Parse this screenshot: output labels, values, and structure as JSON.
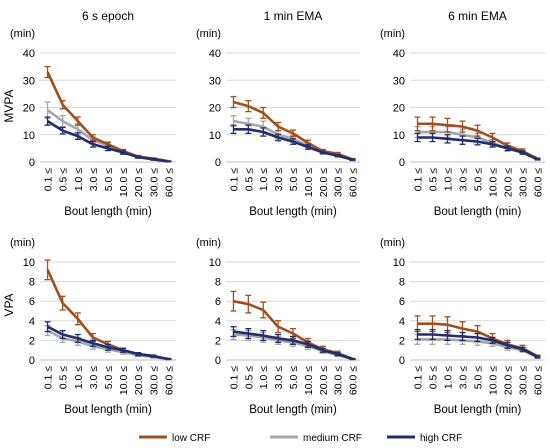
{
  "colors": {
    "low": "#a0501e",
    "medium": "#a6a6a6",
    "high": "#1f2f6e",
    "grid": "#d9d9d9",
    "axis": "#bfbfbf"
  },
  "legend": [
    {
      "key": "low",
      "label": "low CRF"
    },
    {
      "key": "medium",
      "label": "medium CRF"
    },
    {
      "key": "high",
      "label": "high CRF"
    }
  ],
  "row_labels": [
    "MVPA",
    "VPA"
  ],
  "chart_data": [
    {
      "type": "line",
      "title": "6 s epoch",
      "ylabel": "MVPA",
      "unit": "(min)",
      "xlabel": "Bout length (min)",
      "categories": [
        "0.1 ≤",
        "0.5 ≤",
        "1.0 ≤",
        "3.0 ≤",
        "5.0 ≤",
        "10.0 ≤",
        "20.0 ≤",
        "30.0 ≤",
        "60.0 ≤"
      ],
      "ylim": [
        0,
        40
      ],
      "yticks": [
        0,
        10,
        20,
        30,
        40
      ],
      "series": [
        {
          "name": "low CRF",
          "key": "low",
          "values": [
            33,
            21,
            15,
            9,
            6.5,
            4,
            2,
            1.2,
            0.3
          ],
          "err": [
            2,
            1.5,
            1.5,
            1,
            0.8,
            0.6,
            0.4,
            0.3,
            0.1
          ]
        },
        {
          "name": "medium CRF",
          "key": "medium",
          "values": [
            19,
            15,
            12,
            8,
            6,
            3.5,
            1.8,
            1,
            0.3
          ],
          "err": [
            3,
            2,
            2,
            1.2,
            1,
            0.7,
            0.4,
            0.3,
            0.1
          ]
        },
        {
          "name": "high CRF",
          "key": "high",
          "values": [
            15,
            11.5,
            9.5,
            6.5,
            5,
            3.5,
            1.8,
            1,
            0.2
          ],
          "err": [
            1.5,
            1.2,
            1.2,
            1,
            0.8,
            0.6,
            0.4,
            0.3,
            0.1
          ]
        }
      ]
    },
    {
      "type": "line",
      "title": "1 min EMA",
      "ylabel": "",
      "unit": "(min)",
      "xlabel": "Bout length (min)",
      "categories": [
        "0.1 ≤",
        "0.5 ≤",
        "1.0 ≤",
        "3.0 ≤",
        "5.0 ≤",
        "10.0 ≤",
        "20.0 ≤",
        "30.0 ≤",
        "60.0 ≤"
      ],
      "ylim": [
        0,
        40
      ],
      "yticks": [
        0,
        10,
        20,
        30,
        40
      ],
      "series": [
        {
          "name": "low CRF",
          "key": "low",
          "values": [
            22,
            20.5,
            18,
            13,
            10.5,
            7,
            4,
            3,
            1
          ],
          "err": [
            2,
            2,
            2,
            1.5,
            1.2,
            1,
            0.6,
            0.5,
            0.3
          ]
        },
        {
          "name": "medium CRF",
          "key": "medium",
          "values": [
            15,
            14,
            13,
            10,
            8.5,
            6,
            3.5,
            2.5,
            0.8
          ],
          "err": [
            2,
            2,
            2,
            1.5,
            1.2,
            1,
            0.6,
            0.5,
            0.3
          ]
        },
        {
          "name": "high CRF",
          "key": "high",
          "values": [
            12,
            12,
            11,
            9,
            7.5,
            5.5,
            3.5,
            2.3,
            0.8
          ],
          "err": [
            1.5,
            1.5,
            1.5,
            1.2,
            1,
            0.8,
            0.5,
            0.4,
            0.2
          ]
        }
      ]
    },
    {
      "type": "line",
      "title": "6 min EMA",
      "ylabel": "",
      "unit": "(min)",
      "xlabel": "Bout length (min)",
      "categories": [
        "0.1 ≤",
        "0.5 ≤",
        "1.0 ≤",
        "3.0 ≤",
        "5.0 ≤",
        "10.0 ≤",
        "20.0 ≤",
        "30.0 ≤",
        "60.0 ≤"
      ],
      "ylim": [
        0,
        40
      ],
      "yticks": [
        0,
        10,
        20,
        30,
        40
      ],
      "series": [
        {
          "name": "low CRF",
          "key": "low",
          "values": [
            14,
            14,
            13.5,
            13,
            11.5,
            9,
            6,
            4,
            1.2
          ],
          "err": [
            2.5,
            2.5,
            2.5,
            2,
            2,
            1.5,
            1,
            0.8,
            0.3
          ]
        },
        {
          "name": "medium CRF",
          "key": "medium",
          "values": [
            11,
            11,
            11,
            10,
            9,
            7,
            5,
            3.5,
            1
          ],
          "err": [
            2,
            2,
            2,
            2,
            1.5,
            1.2,
            1,
            0.7,
            0.3
          ]
        },
        {
          "name": "high CRF",
          "key": "high",
          "values": [
            9,
            9,
            8.5,
            8,
            7.5,
            6.5,
            5,
            3.5,
            1
          ],
          "err": [
            1.5,
            1.5,
            1.5,
            1.5,
            1.2,
            1,
            0.8,
            0.6,
            0.2
          ]
        }
      ]
    },
    {
      "type": "line",
      "title": "",
      "ylabel": "VPA",
      "unit": "(min)",
      "xlabel": "Bout length (min)",
      "categories": [
        "0.1 ≤",
        "0.5 ≤",
        "1.0 ≤",
        "3.0 ≤",
        "5.0 ≤",
        "10.0 ≤",
        "20.0 ≤",
        "30.0 ≤",
        "60.0 ≤"
      ],
      "ylim": [
        0,
        10
      ],
      "yticks": [
        0,
        2,
        4,
        6,
        8,
        10
      ],
      "series": [
        {
          "name": "low CRF",
          "key": "low",
          "values": [
            9.2,
            5.8,
            4.2,
            2.3,
            1.6,
            1,
            0.6,
            0.4,
            0.1
          ],
          "err": [
            1,
            0.7,
            0.6,
            0.4,
            0.3,
            0.2,
            0.15,
            0.1,
            0.05
          ]
        },
        {
          "name": "medium CRF",
          "key": "medium",
          "values": [
            3,
            2.2,
            1.9,
            1.4,
            1.1,
            0.8,
            0.5,
            0.3,
            0.1
          ],
          "err": [
            0.5,
            0.4,
            0.4,
            0.3,
            0.3,
            0.2,
            0.15,
            0.1,
            0.05
          ]
        },
        {
          "name": "high CRF",
          "key": "high",
          "values": [
            3.4,
            2.6,
            2.2,
            1.7,
            1.3,
            1,
            0.6,
            0.4,
            0.1
          ],
          "err": [
            0.5,
            0.4,
            0.4,
            0.3,
            0.3,
            0.2,
            0.15,
            0.1,
            0.05
          ]
        }
      ]
    },
    {
      "type": "line",
      "title": "",
      "ylabel": "",
      "unit": "(min)",
      "xlabel": "Bout length (min)",
      "categories": [
        "0.1 ≤",
        "0.5 ≤",
        "1.0 ≤",
        "3.0 ≤",
        "5.0 ≤",
        "10.0 ≤",
        "20.0 ≤",
        "30.0 ≤",
        "60.0 ≤"
      ],
      "ylim": [
        0,
        10
      ],
      "yticks": [
        0,
        2,
        4,
        6,
        8,
        10
      ],
      "series": [
        {
          "name": "low CRF",
          "key": "low",
          "values": [
            6,
            5.7,
            5.1,
            3.4,
            2.7,
            1.8,
            1.1,
            0.7,
            0.1
          ],
          "err": [
            1,
            0.9,
            0.8,
            0.6,
            0.5,
            0.4,
            0.3,
            0.2,
            0.05
          ]
        },
        {
          "name": "medium CRF",
          "key": "medium",
          "values": [
            2.6,
            2.5,
            2.3,
            2,
            1.8,
            1.4,
            0.9,
            0.5,
            0.1
          ],
          "err": [
            0.5,
            0.5,
            0.5,
            0.4,
            0.4,
            0.3,
            0.2,
            0.15,
            0.05
          ]
        },
        {
          "name": "high CRF",
          "key": "high",
          "values": [
            2.9,
            2.7,
            2.5,
            2.2,
            2,
            1.6,
            1,
            0.6,
            0.1
          ],
          "err": [
            0.5,
            0.5,
            0.5,
            0.4,
            0.4,
            0.3,
            0.2,
            0.15,
            0.05
          ]
        }
      ]
    },
    {
      "type": "line",
      "title": "",
      "ylabel": "",
      "unit": "(min)",
      "xlabel": "Bout length (min)",
      "categories": [
        "0.1 ≤",
        "0.5 ≤",
        "1.0 ≤",
        "3.0 ≤",
        "5.0 ≤",
        "10.0 ≤",
        "20.0 ≤",
        "30.0 ≤",
        "60.0 ≤"
      ],
      "ylim": [
        0,
        10
      ],
      "yticks": [
        0,
        2,
        4,
        6,
        8,
        10
      ],
      "series": [
        {
          "name": "low CRF",
          "key": "low",
          "values": [
            3.7,
            3.7,
            3.6,
            3.2,
            2.9,
            2.2,
            1.6,
            1.2,
            0.4
          ],
          "err": [
            0.8,
            0.8,
            0.8,
            0.7,
            0.6,
            0.5,
            0.4,
            0.3,
            0.1
          ]
        },
        {
          "name": "medium CRF",
          "key": "medium",
          "values": [
            2.1,
            2.1,
            2.1,
            2,
            1.9,
            1.7,
            1.3,
            1,
            0.3
          ],
          "err": [
            0.5,
            0.5,
            0.5,
            0.4,
            0.4,
            0.3,
            0.3,
            0.2,
            0.1
          ]
        },
        {
          "name": "high CRF",
          "key": "high",
          "values": [
            2.6,
            2.6,
            2.5,
            2.4,
            2.3,
            2,
            1.5,
            1.1,
            0.3
          ],
          "err": [
            0.5,
            0.5,
            0.5,
            0.4,
            0.4,
            0.3,
            0.3,
            0.2,
            0.1
          ]
        }
      ]
    }
  ]
}
